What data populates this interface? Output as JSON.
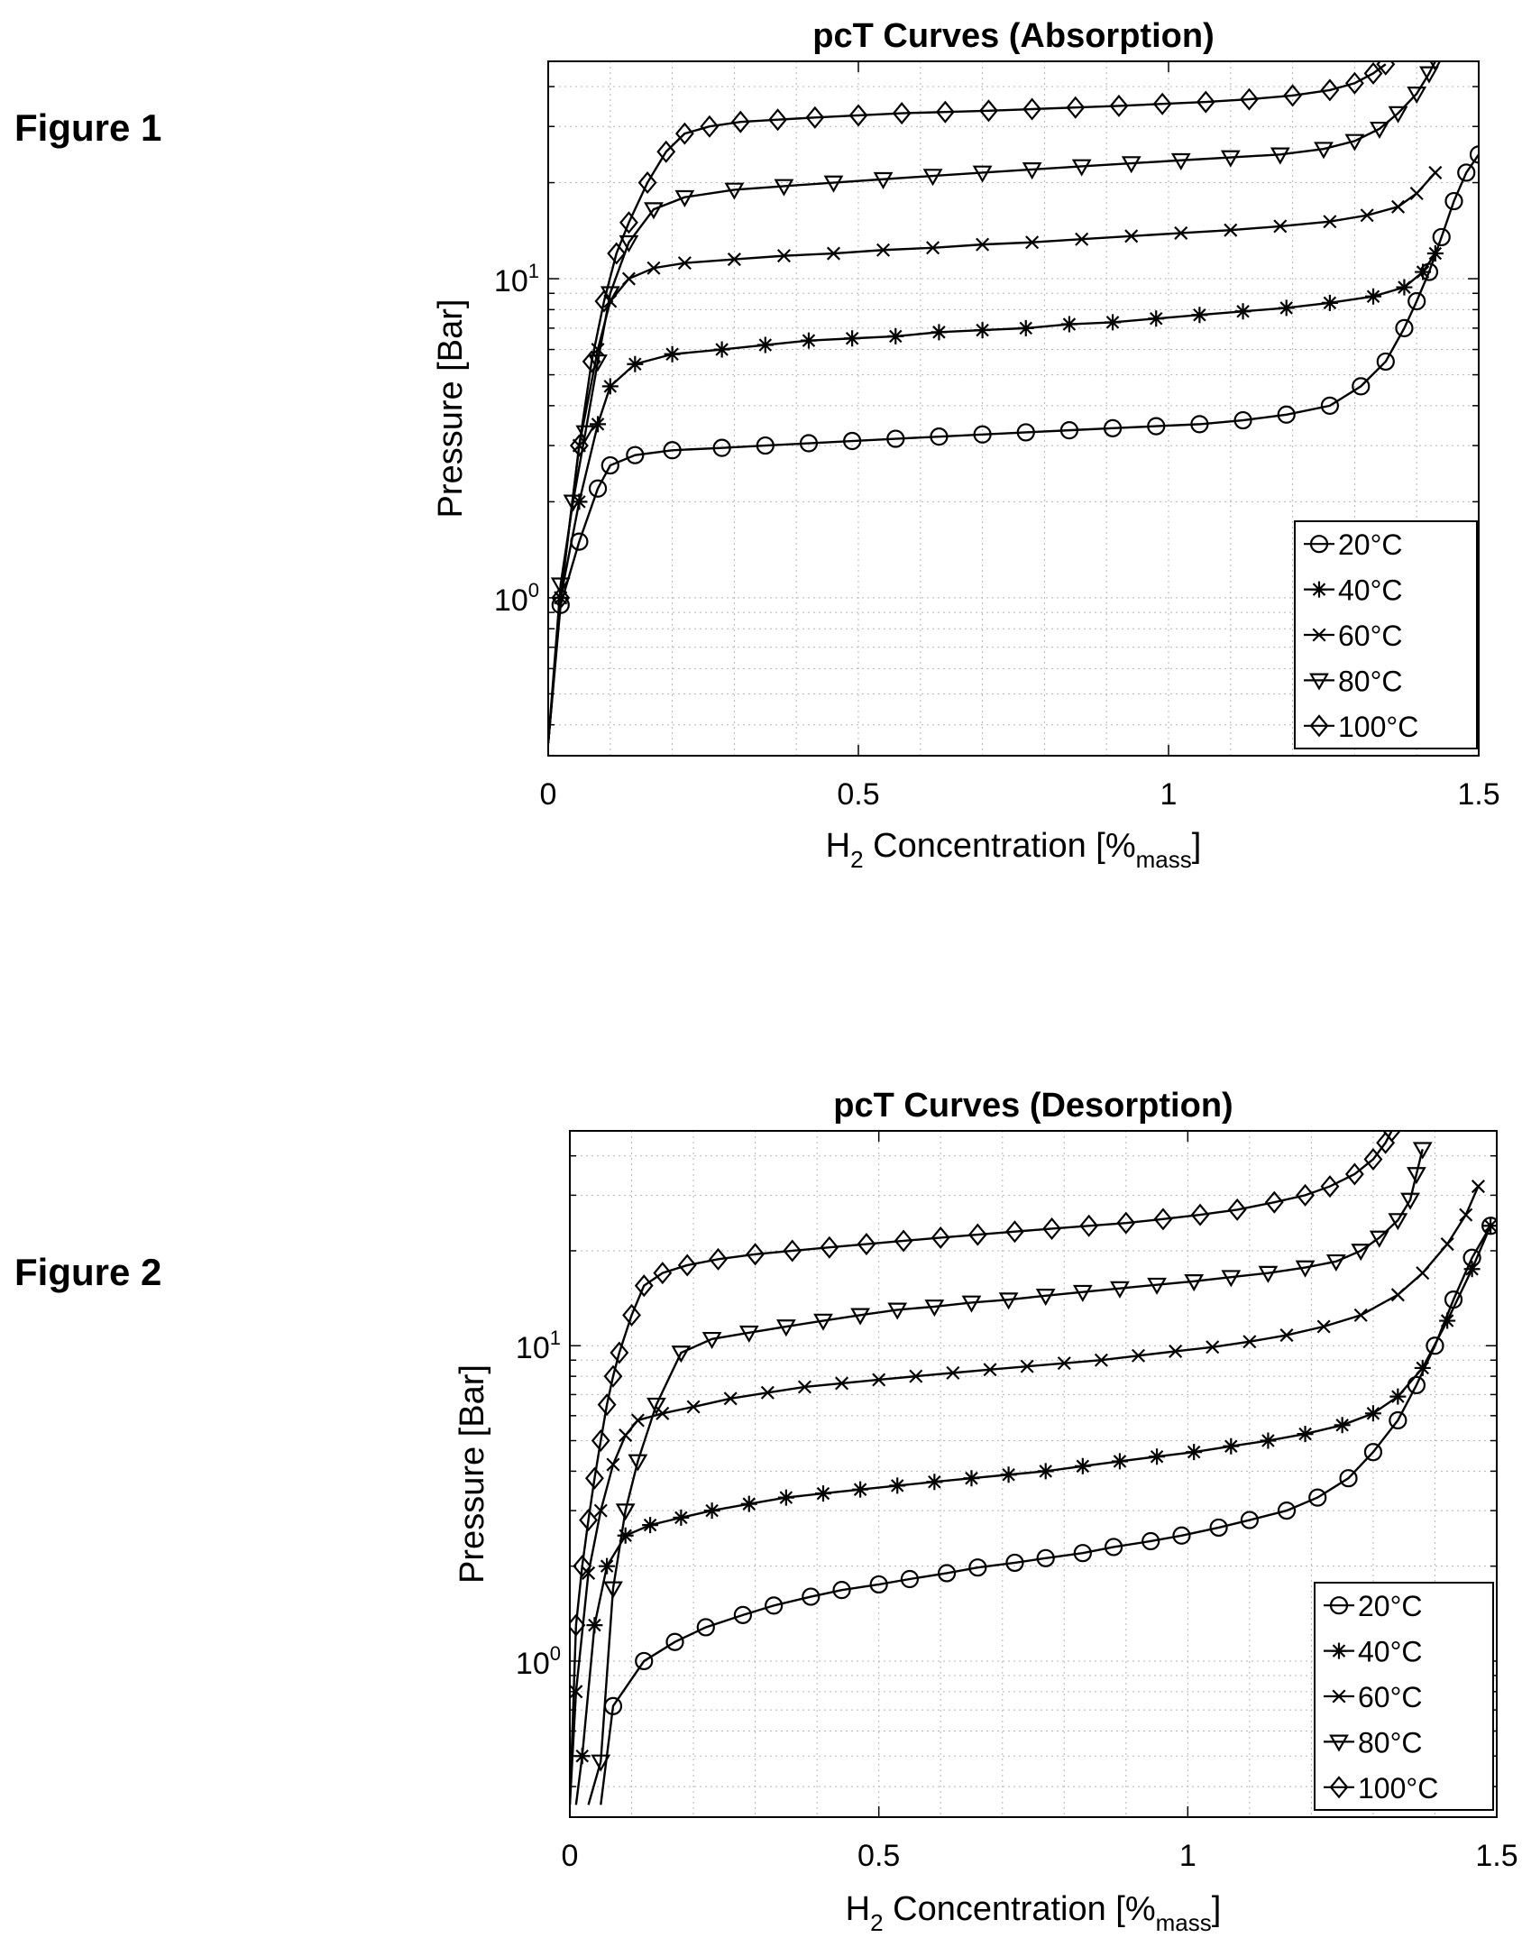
{
  "figures": [
    {
      "label": "Figure 1"
    },
    {
      "label": "Figure 2"
    }
  ],
  "chart_data": [
    {
      "type": "line",
      "title": "pcT Curves (Absorption)",
      "xlabel": {
        "base": "H",
        "sub": "2",
        "mid": " Concentration [%",
        "sub2": "mass",
        "end": "]"
      },
      "ylabel": "Pressure [Bar]",
      "xlim": [
        0,
        1.5
      ],
      "ylim": [
        0.32,
        48
      ],
      "yscale": "log",
      "grid": true,
      "xticks": [
        {
          "value": 0,
          "label": "0"
        },
        {
          "value": 0.5,
          "label": "0.5"
        },
        {
          "value": 1,
          "label": "1"
        },
        {
          "value": 1.5,
          "label": "1.5"
        }
      ],
      "yticks": [
        {
          "value": 1,
          "base": "10",
          "exp": "0"
        },
        {
          "value": 10,
          "base": "10",
          "exp": "1"
        }
      ],
      "legend_position": "bottom-right",
      "series": [
        {
          "name": "20°C",
          "marker": "circle",
          "x": [
            0,
            0.02,
            0.05,
            0.08,
            0.1,
            0.14,
            0.2,
            0.28,
            0.35,
            0.42,
            0.49,
            0.56,
            0.63,
            0.7,
            0.77,
            0.84,
            0.91,
            0.98,
            1.05,
            1.12,
            1.19,
            1.26,
            1.31,
            1.35,
            1.38,
            1.4,
            1.42,
            1.44,
            1.46,
            1.48,
            1.5
          ],
          "y": [
            0.35,
            0.95,
            1.5,
            2.2,
            2.6,
            2.8,
            2.9,
            2.95,
            3.0,
            3.05,
            3.1,
            3.15,
            3.2,
            3.25,
            3.3,
            3.35,
            3.4,
            3.45,
            3.5,
            3.6,
            3.75,
            4.0,
            4.6,
            5.5,
            7.0,
            8.5,
            10.5,
            13.5,
            17.5,
            21.5,
            24.5
          ]
        },
        {
          "name": "40°C",
          "marker": "asterisk",
          "x": [
            0,
            0.02,
            0.05,
            0.08,
            0.1,
            0.14,
            0.2,
            0.28,
            0.35,
            0.42,
            0.49,
            0.56,
            0.63,
            0.7,
            0.77,
            0.84,
            0.91,
            0.98,
            1.05,
            1.12,
            1.19,
            1.26,
            1.33,
            1.38,
            1.41,
            1.43
          ],
          "y": [
            0.35,
            1.0,
            2.0,
            3.5,
            4.6,
            5.4,
            5.8,
            6.0,
            6.2,
            6.4,
            6.5,
            6.6,
            6.8,
            6.9,
            7.0,
            7.2,
            7.3,
            7.5,
            7.7,
            7.9,
            8.1,
            8.4,
            8.8,
            9.4,
            10.5,
            12.0
          ]
        },
        {
          "name": "60°C",
          "marker": "cross",
          "x": [
            0,
            0.02,
            0.05,
            0.08,
            0.1,
            0.13,
            0.17,
            0.22,
            0.3,
            0.38,
            0.46,
            0.54,
            0.62,
            0.7,
            0.78,
            0.86,
            0.94,
            1.02,
            1.1,
            1.18,
            1.26,
            1.32,
            1.37,
            1.4,
            1.43
          ],
          "y": [
            0.35,
            1.0,
            3.0,
            6.0,
            8.5,
            10.0,
            10.8,
            11.2,
            11.5,
            11.8,
            12.0,
            12.3,
            12.5,
            12.8,
            13.0,
            13.3,
            13.6,
            13.9,
            14.2,
            14.6,
            15.1,
            15.8,
            16.8,
            18.5,
            21.5
          ]
        },
        {
          "name": "80°C",
          "marker": "triangle-down",
          "x": [
            0,
            0.02,
            0.04,
            0.06,
            0.08,
            0.1,
            0.13,
            0.17,
            0.22,
            0.3,
            0.38,
            0.46,
            0.54,
            0.62,
            0.7,
            0.78,
            0.86,
            0.94,
            1.02,
            1.1,
            1.18,
            1.25,
            1.3,
            1.34,
            1.37,
            1.4,
            1.42,
            1.43
          ],
          "y": [
            0.35,
            1.1,
            2.0,
            3.3,
            5.5,
            9.0,
            13.0,
            16.5,
            18.0,
            19.0,
            19.5,
            20.0,
            20.5,
            21.0,
            21.5,
            22.0,
            22.5,
            23.0,
            23.5,
            24.0,
            24.5,
            25.5,
            27.0,
            29.5,
            33.0,
            38.0,
            44.0,
            48.0
          ]
        },
        {
          "name": "100°C",
          "marker": "diamond",
          "x": [
            0,
            0.02,
            0.05,
            0.07,
            0.09,
            0.11,
            0.13,
            0.16,
            0.19,
            0.22,
            0.26,
            0.31,
            0.37,
            0.43,
            0.5,
            0.57,
            0.64,
            0.71,
            0.78,
            0.85,
            0.92,
            0.99,
            1.06,
            1.13,
            1.2,
            1.26,
            1.3,
            1.33,
            1.35
          ],
          "y": [
            0.35,
            1.0,
            3.0,
            5.5,
            8.5,
            12.0,
            15.0,
            20.0,
            25.0,
            28.5,
            30.0,
            31.0,
            31.5,
            32.0,
            32.5,
            33.0,
            33.3,
            33.6,
            34.0,
            34.4,
            34.8,
            35.3,
            35.8,
            36.5,
            37.5,
            39.0,
            41.0,
            44.0,
            47.0
          ]
        }
      ]
    },
    {
      "type": "line",
      "title": "pcT Curves (Desorption)",
      "xlabel": {
        "base": "H",
        "sub": "2",
        "mid": " Concentration [%",
        "sub2": "mass",
        "end": "]"
      },
      "ylabel": "Pressure [Bar]",
      "xlim": [
        0,
        1.5
      ],
      "ylim": [
        0.32,
        48
      ],
      "yscale": "log",
      "grid": true,
      "xticks": [
        {
          "value": 0,
          "label": "0"
        },
        {
          "value": 0.5,
          "label": "0.5"
        },
        {
          "value": 1,
          "label": "1"
        },
        {
          "value": 1.5,
          "label": "1.5"
        }
      ],
      "yticks": [
        {
          "value": 1,
          "base": "10",
          "exp": "0"
        },
        {
          "value": 10,
          "base": "10",
          "exp": "1"
        }
      ],
      "legend_position": "bottom-right",
      "series": [
        {
          "name": "20°C",
          "marker": "circle",
          "x": [
            0.05,
            0.07,
            0.12,
            0.17,
            0.22,
            0.28,
            0.33,
            0.39,
            0.44,
            0.5,
            0.55,
            0.61,
            0.66,
            0.72,
            0.77,
            0.83,
            0.88,
            0.94,
            0.99,
            1.05,
            1.1,
            1.16,
            1.21,
            1.26,
            1.3,
            1.34,
            1.37,
            1.4,
            1.43,
            1.46,
            1.49
          ],
          "y": [
            0.35,
            0.72,
            1.0,
            1.15,
            1.28,
            1.4,
            1.5,
            1.6,
            1.68,
            1.75,
            1.82,
            1.9,
            1.98,
            2.05,
            2.12,
            2.2,
            2.3,
            2.4,
            2.5,
            2.65,
            2.8,
            3.0,
            3.3,
            3.8,
            4.6,
            5.8,
            7.5,
            10.0,
            14.0,
            19.0,
            24.0
          ]
        },
        {
          "name": "40°C",
          "marker": "asterisk",
          "x": [
            0.01,
            0.02,
            0.04,
            0.06,
            0.09,
            0.13,
            0.18,
            0.23,
            0.29,
            0.35,
            0.41,
            0.47,
            0.53,
            0.59,
            0.65,
            0.71,
            0.77,
            0.83,
            0.89,
            0.95,
            1.01,
            1.07,
            1.13,
            1.19,
            1.25,
            1.3,
            1.34,
            1.38,
            1.42,
            1.46,
            1.49
          ],
          "y": [
            0.35,
            0.5,
            1.3,
            2.0,
            2.5,
            2.7,
            2.85,
            3.0,
            3.15,
            3.3,
            3.4,
            3.5,
            3.6,
            3.7,
            3.8,
            3.9,
            4.0,
            4.15,
            4.3,
            4.45,
            4.6,
            4.8,
            5.0,
            5.25,
            5.6,
            6.1,
            6.9,
            8.5,
            12.0,
            17.5,
            24.0
          ]
        },
        {
          "name": "60°C",
          "marker": "cross",
          "x": [
            0.0,
            0.01,
            0.03,
            0.05,
            0.07,
            0.09,
            0.11,
            0.15,
            0.2,
            0.26,
            0.32,
            0.38,
            0.44,
            0.5,
            0.56,
            0.62,
            0.68,
            0.74,
            0.8,
            0.86,
            0.92,
            0.98,
            1.04,
            1.1,
            1.16,
            1.22,
            1.28,
            1.34,
            1.38,
            1.42,
            1.45,
            1.47
          ],
          "y": [
            0.35,
            0.8,
            1.9,
            3.0,
            4.2,
            5.2,
            5.8,
            6.1,
            6.4,
            6.8,
            7.1,
            7.4,
            7.6,
            7.8,
            8.0,
            8.2,
            8.4,
            8.6,
            8.8,
            9.0,
            9.3,
            9.6,
            9.9,
            10.3,
            10.8,
            11.5,
            12.5,
            14.5,
            17.0,
            21.0,
            26.0,
            32.0
          ]
        },
        {
          "name": "80°C",
          "marker": "triangle-down",
          "x": [
            0.03,
            0.05,
            0.07,
            0.09,
            0.11,
            0.14,
            0.18,
            0.23,
            0.29,
            0.35,
            0.41,
            0.47,
            0.53,
            0.59,
            0.65,
            0.71,
            0.77,
            0.83,
            0.89,
            0.95,
            1.01,
            1.07,
            1.13,
            1.19,
            1.24,
            1.28,
            1.31,
            1.34,
            1.36,
            1.37,
            1.38
          ],
          "y": [
            0.35,
            0.48,
            1.7,
            3.0,
            4.3,
            6.5,
            9.5,
            10.5,
            11.0,
            11.5,
            12.0,
            12.5,
            13.0,
            13.3,
            13.7,
            14.0,
            14.4,
            14.8,
            15.2,
            15.6,
            16.0,
            16.5,
            17.0,
            17.7,
            18.5,
            20.0,
            22.0,
            25.0,
            29.0,
            35.0,
            42.0
          ]
        },
        {
          "name": "100°C",
          "marker": "diamond",
          "x": [
            0.0,
            0.01,
            0.02,
            0.03,
            0.04,
            0.05,
            0.06,
            0.07,
            0.08,
            0.1,
            0.12,
            0.15,
            0.19,
            0.24,
            0.3,
            0.36,
            0.42,
            0.48,
            0.54,
            0.6,
            0.66,
            0.72,
            0.78,
            0.84,
            0.9,
            0.96,
            1.02,
            1.08,
            1.14,
            1.19,
            1.23,
            1.27,
            1.3,
            1.32,
            1.33
          ],
          "y": [
            0.35,
            1.3,
            2.0,
            2.8,
            3.8,
            5.0,
            6.5,
            8.0,
            9.5,
            12.5,
            15.5,
            17.0,
            18.0,
            18.8,
            19.5,
            20.0,
            20.5,
            21.0,
            21.5,
            22.0,
            22.5,
            23.0,
            23.5,
            24.0,
            24.5,
            25.2,
            26.0,
            27.0,
            28.5,
            30.0,
            32.0,
            35.0,
            39.0,
            44.0,
            48.0
          ]
        }
      ]
    }
  ]
}
